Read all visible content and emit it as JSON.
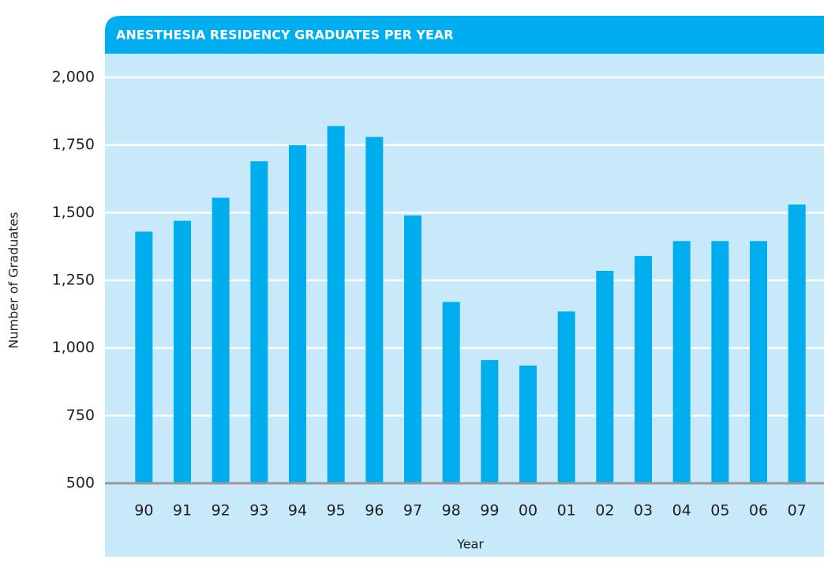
{
  "chart_data": {
    "type": "bar",
    "title": "ANESTHESIA RESIDENCY GRADUATES PER YEAR",
    "x_label": "Year",
    "y_label": "Number of Graduates",
    "categories": [
      "90",
      "91",
      "92",
      "93",
      "94",
      "95",
      "96",
      "97",
      "98",
      "99",
      "00",
      "01",
      "02",
      "03",
      "04",
      "05",
      "06",
      "07"
    ],
    "values": [
      1430,
      1470,
      1555,
      1690,
      1750,
      1820,
      1780,
      1490,
      1170,
      955,
      935,
      1135,
      1285,
      1340,
      1395,
      1395,
      1395,
      1530
    ],
    "color": "#00aeef",
    "ylim": [
      500,
      2000
    ],
    "yticks": [
      500,
      750,
      {
        "value": 1000,
        "label": "1,000"
      },
      {
        "value": 1250,
        "label": "1,250"
      },
      {
        "value": 1500,
        "label": "1,500"
      },
      {
        "value": 1750,
        "label": "1,750"
      },
      {
        "value": 2000,
        "label": "2,000"
      }
    ],
    "grid": true
  }
}
